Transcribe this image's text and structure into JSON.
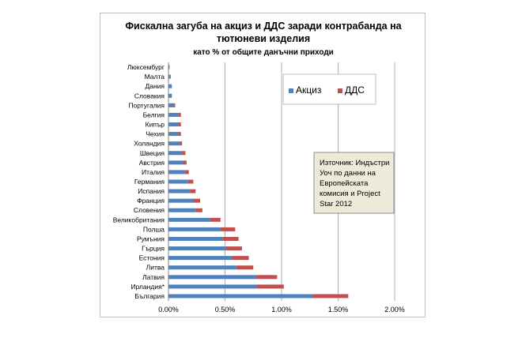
{
  "chart_data": {
    "type": "bar",
    "orientation": "horizontal",
    "stacked": true,
    "title_line1": "Фискална загуба на акциз и ДДС заради контрабанда на",
    "title_line2": "тютюневи изделия",
    "subtitle": "като % от общите данъчни приходи",
    "categories": [
      "Люксембург",
      "Малта",
      "Дания",
      "Словакия",
      "Португалия",
      "Белгия",
      "Кипър",
      "Чехия",
      "Холандия",
      "Швеция",
      "Австрия",
      "Италия",
      "Германия",
      "Испания",
      "Франция",
      "Словения",
      "Великобритания",
      "Полша",
      "Румъния",
      "Гърция",
      "Естония",
      "Литва",
      "Латвия",
      "Ирландия*",
      "България"
    ],
    "series": [
      {
        "name": "Акциз",
        "color": "#4F81BD",
        "values": [
          0.01,
          0.02,
          0.03,
          0.03,
          0.05,
          0.09,
          0.09,
          0.09,
          0.1,
          0.12,
          0.13,
          0.15,
          0.17,
          0.19,
          0.22,
          0.24,
          0.37,
          0.46,
          0.48,
          0.51,
          0.56,
          0.6,
          0.77,
          0.78,
          1.28
        ]
      },
      {
        "name": "ДДС",
        "color": "#C0504D",
        "values": [
          0.0,
          0.0,
          0.0,
          0.0,
          0.01,
          0.02,
          0.02,
          0.02,
          0.02,
          0.03,
          0.03,
          0.03,
          0.05,
          0.05,
          0.06,
          0.06,
          0.09,
          0.13,
          0.14,
          0.14,
          0.15,
          0.15,
          0.19,
          0.24,
          0.31
        ]
      }
    ],
    "xlim": [
      0,
      2.0
    ],
    "x_ticks": [
      "0.00%",
      "0.50%",
      "1.00%",
      "1.50%",
      "2.00%"
    ],
    "x_tick_values": [
      0,
      0.5,
      1.0,
      1.5,
      2.0
    ],
    "grid": "vertical",
    "legend_position": "top-right"
  },
  "annotation": {
    "lines": [
      "Източник: Индъстри",
      "Уоч по данни на",
      "Европейската",
      "комисия и Project",
      "Star 2012"
    ]
  }
}
